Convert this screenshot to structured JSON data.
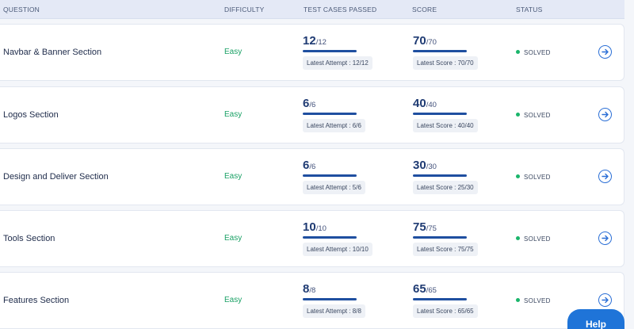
{
  "header": {
    "question": "QUESTION",
    "difficulty": "DIFFICULTY",
    "tests": "TEST CASES PASSED",
    "score": "SCORE",
    "status": "STATUS"
  },
  "rows": [
    {
      "name": "Navbar & Banner Section",
      "difficulty": "Easy",
      "tests_big": "12",
      "tests_small": "/12",
      "tests_attempt": "Latest Attempt : 12/12",
      "score_big": "70",
      "score_small": "/70",
      "score_latest": "Latest Score : 70/70",
      "status": "SOLVED"
    },
    {
      "name": "Logos Section",
      "difficulty": "Easy",
      "tests_big": "6",
      "tests_small": "/6",
      "tests_attempt": "Latest Attempt : 6/6",
      "score_big": "40",
      "score_small": "/40",
      "score_latest": "Latest Score : 40/40",
      "status": "SOLVED"
    },
    {
      "name": "Design and Deliver Section",
      "difficulty": "Easy",
      "tests_big": "6",
      "tests_small": "/6",
      "tests_attempt": "Latest Attempt : 5/6",
      "score_big": "30",
      "score_small": "/30",
      "score_latest": "Latest Score : 25/30",
      "status": "SOLVED"
    },
    {
      "name": "Tools Section",
      "difficulty": "Easy",
      "tests_big": "10",
      "tests_small": "/10",
      "tests_attempt": "Latest Attempt : 10/10",
      "score_big": "75",
      "score_small": "/75",
      "score_latest": "Latest Score : 75/75",
      "status": "SOLVED"
    },
    {
      "name": "Features Section",
      "difficulty": "Easy",
      "tests_big": "8",
      "tests_small": "/8",
      "tests_attempt": "Latest Attempt : 8/8",
      "score_big": "65",
      "score_small": "/65",
      "score_latest": "Latest Score : 65/65",
      "status": "SOLVED"
    }
  ],
  "help_label": "Help",
  "colors": {
    "accent": "#2b6fd6",
    "easy": "#1aa165",
    "solved_dot": "#1ab56b",
    "bar": "#1f4fa0"
  },
  "icons": {
    "row_action": "arrow-right-circle-icon",
    "status": "status-dot-icon"
  }
}
